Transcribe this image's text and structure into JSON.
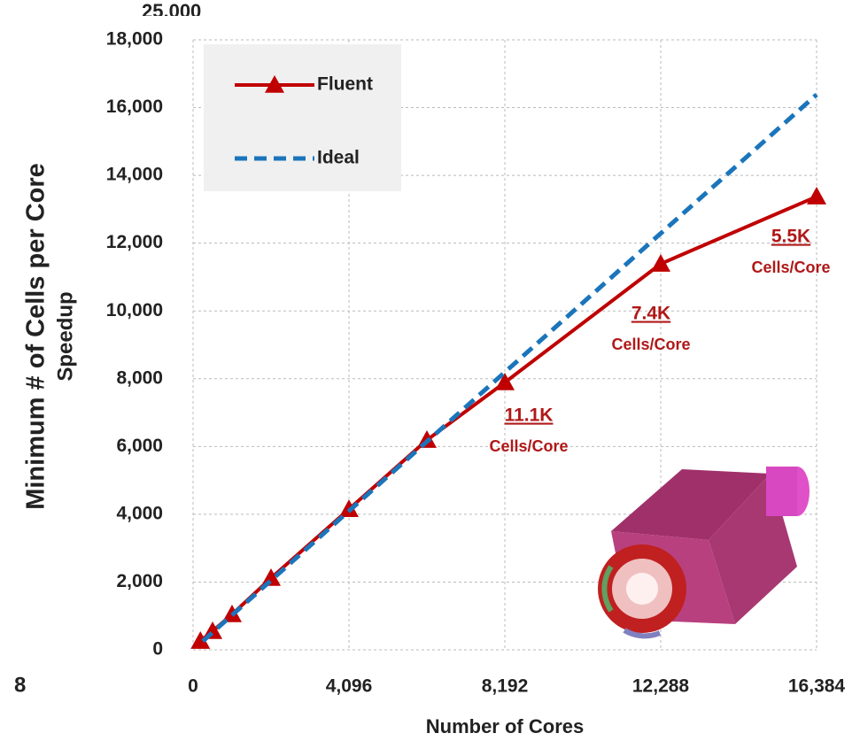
{
  "chart_data": {
    "type": "line",
    "x_label": "Number of Cores",
    "y_label": "Speedup",
    "overlapped_texts": [
      "Minimum # of Cells per Core",
      "25,000",
      "8"
    ],
    "xlim": [
      0,
      16384
    ],
    "xticks": [
      0,
      {
        "value": 4096,
        "label": "4,096"
      },
      {
        "value": 8192,
        "label": "8,192"
      },
      {
        "value": 12288,
        "label": "12,288"
      },
      {
        "value": 16384,
        "label": "16,384"
      }
    ],
    "ylim": [
      0,
      18000
    ],
    "yticks": [
      0,
      {
        "value": 2000,
        "label": "2,000"
      },
      {
        "value": 4000,
        "label": "4,000"
      },
      {
        "value": 6000,
        "label": "6,000"
      },
      {
        "value": 8000,
        "label": "8,000"
      },
      {
        "value": 10000,
        "label": "10,000"
      },
      {
        "value": 12000,
        "label": "12,000"
      },
      {
        "value": 14000,
        "label": "14,000"
      },
      {
        "value": 16000,
        "label": "16,000"
      },
      {
        "value": 18000,
        "label": "18,000"
      }
    ],
    "grid": true,
    "legend": "top-left",
    "series": [
      {
        "name": "Fluent",
        "color": "#c00000",
        "marker": "triangle",
        "dashed": false,
        "x": [
          192,
          512,
          1024,
          2048,
          4096,
          6144,
          8192,
          12288,
          16384
        ],
        "values": [
          260,
          550,
          1045,
          2116,
          4150,
          6190,
          7890,
          11390,
          13375
        ]
      },
      {
        "name": "Ideal",
        "color": "#1b75bb",
        "marker": "none",
        "dashed": true,
        "x": [
          256,
          16384
        ],
        "values": [
          256,
          16384
        ]
      }
    ],
    "annotations": [
      {
        "label": "11.1K",
        "sublabel": "Cells/Core"
      },
      {
        "label": "7.4K",
        "sublabel": "Cells/Core"
      },
      {
        "label": "5.5K",
        "sublabel": "Cells/Core"
      }
    ]
  }
}
